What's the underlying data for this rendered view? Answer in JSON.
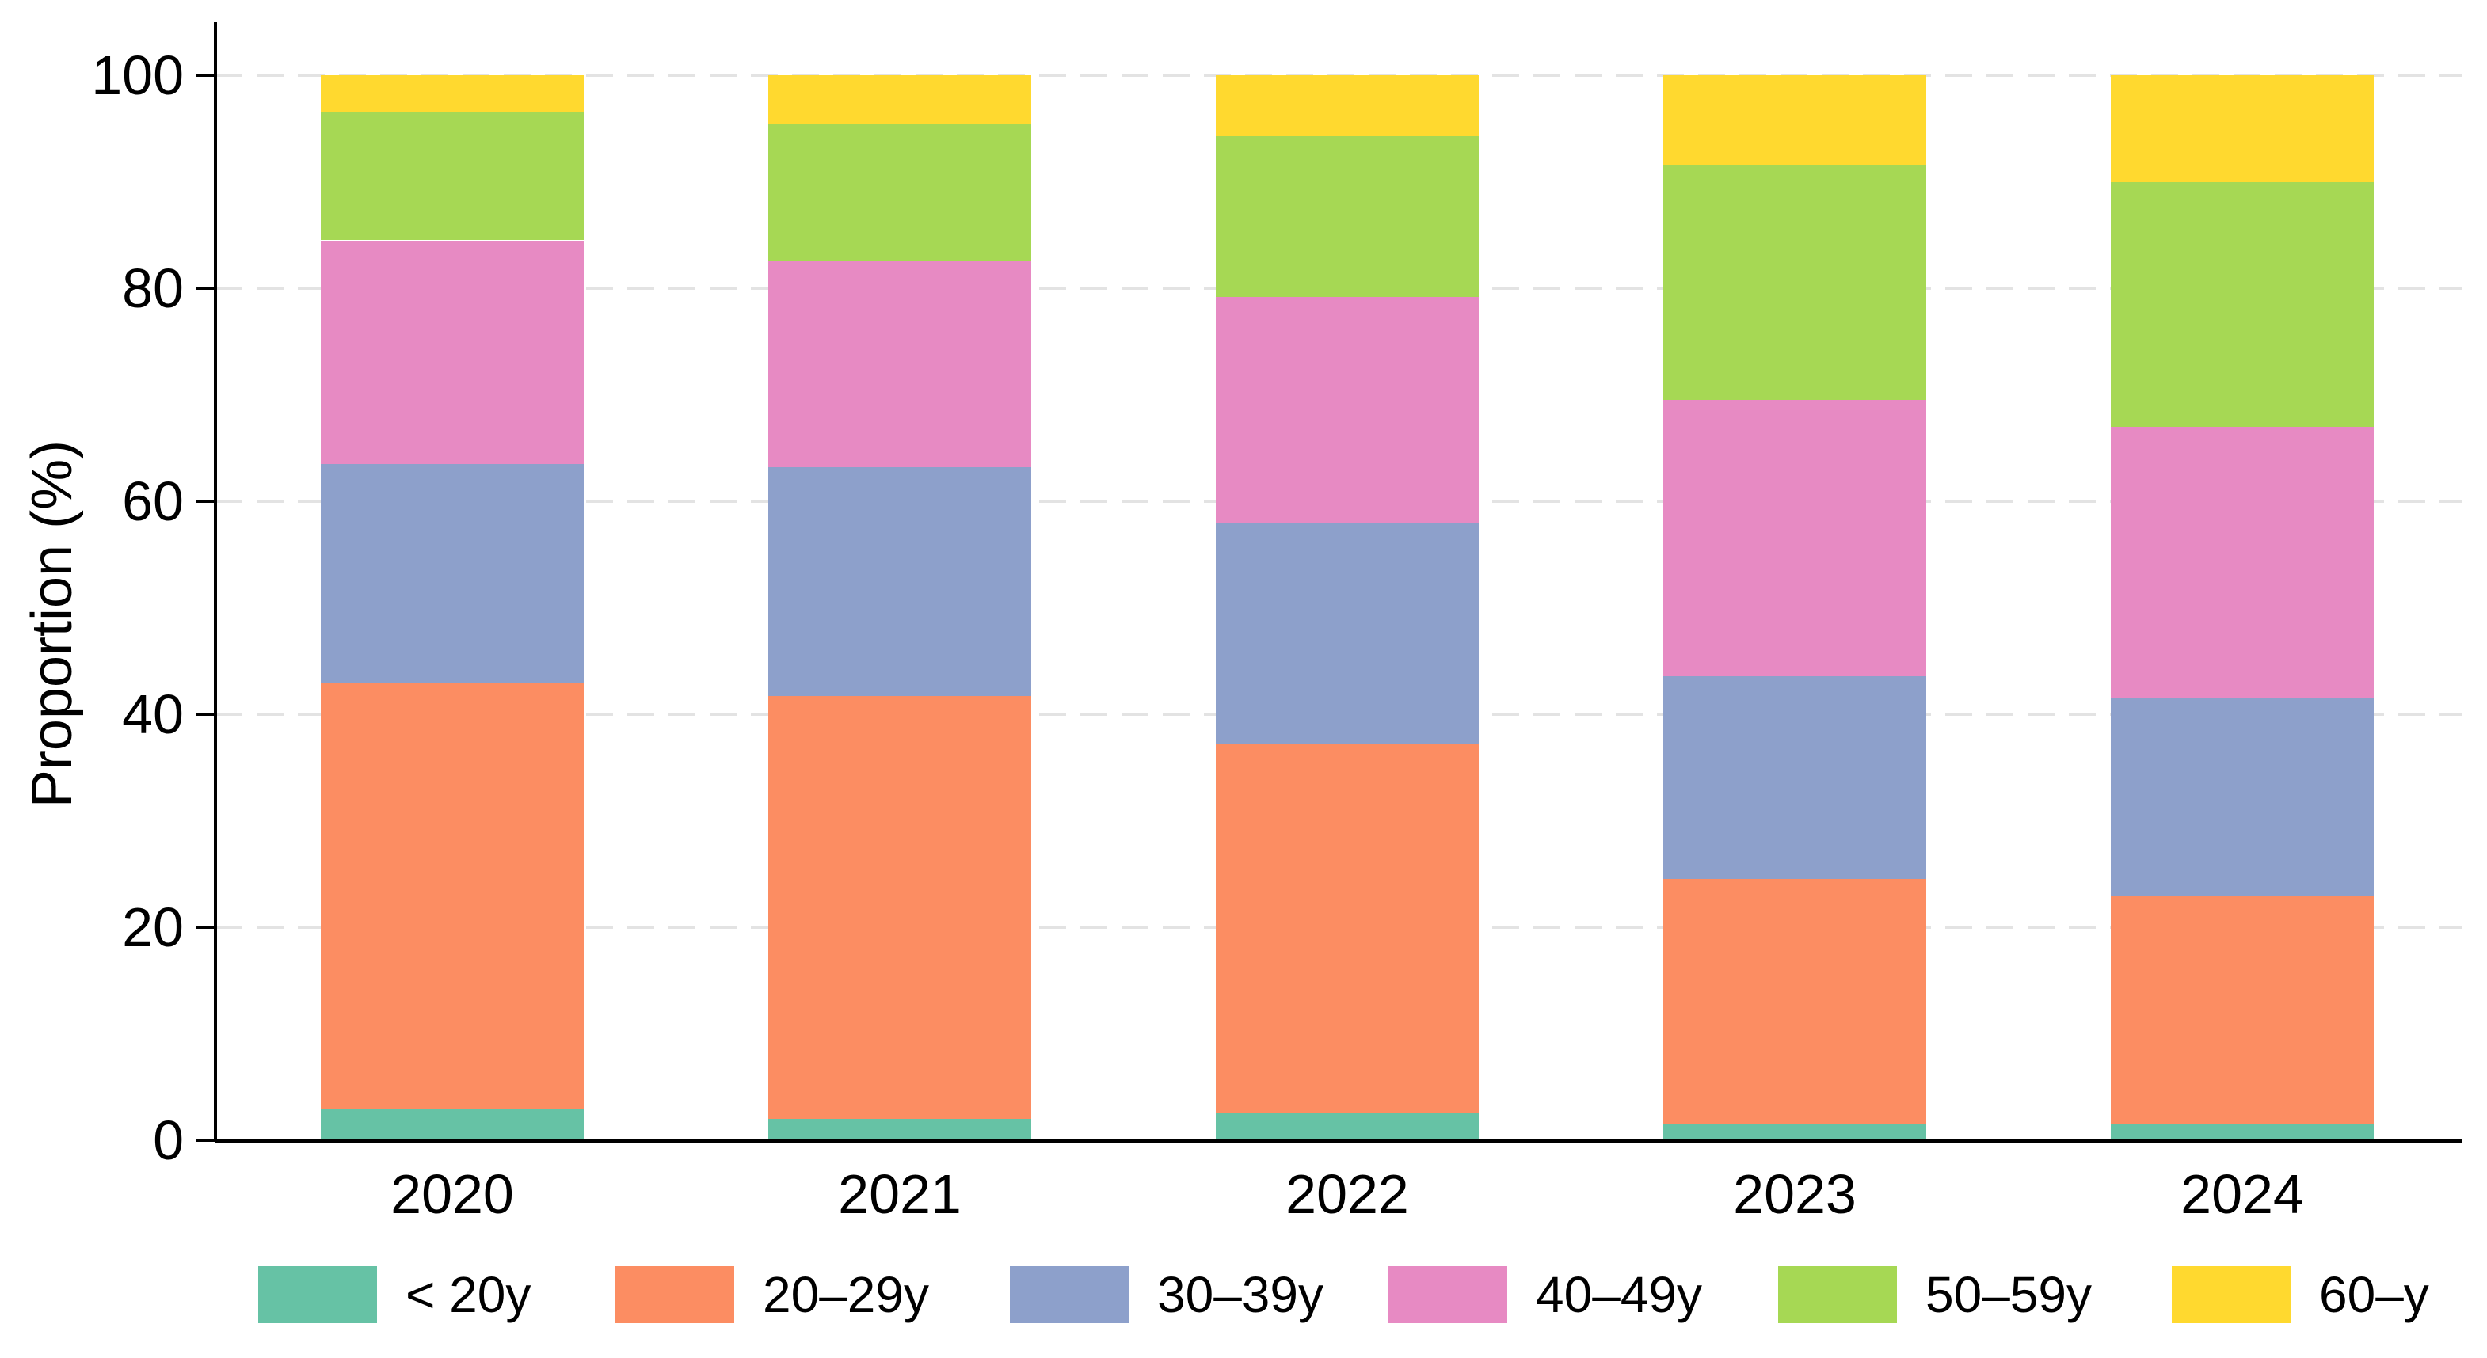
{
  "figure": {
    "background": "#ffffff",
    "text_color": "#000000",
    "axis_color": "#000000",
    "gridline_color": "#e3e3e3",
    "gridline_style": "dashed"
  },
  "chart_data": {
    "type": "bar",
    "stacked": true,
    "title": "",
    "xlabel": "",
    "ylabel": "Proportion (%)",
    "ylim": [
      0,
      100
    ],
    "yticks": [
      0,
      20,
      40,
      60,
      80,
      100
    ],
    "ytick_labels": [
      "0",
      "20",
      "40",
      "60",
      "80",
      "100"
    ],
    "grid": "horizontal dashed lines at 20/40/60/80/100",
    "legend_position": "bottom",
    "categories": [
      "2020",
      "2021",
      "2022",
      "2023",
      "2024"
    ],
    "series": [
      {
        "name": "< 20y",
        "color": "#66c2a5",
        "values": [
          3.0,
          2.0,
          2.5,
          1.5,
          1.5
        ]
      },
      {
        "name": "20–29y",
        "color": "#fc8d62",
        "values": [
          40.0,
          39.7,
          34.7,
          23.0,
          21.5
        ]
      },
      {
        "name": "30–39y",
        "color": "#8da0cb",
        "values": [
          20.5,
          21.5,
          20.8,
          19.1,
          18.5
        ]
      },
      {
        "name": "40–49y",
        "color": "#e78ac3",
        "values": [
          21.0,
          19.3,
          21.2,
          25.9,
          25.5
        ]
      },
      {
        "name": "50–59y",
        "color": "#a6d854",
        "values": [
          12.0,
          13.0,
          15.1,
          22.0,
          23.0
        ]
      },
      {
        "name": "60–y",
        "color": "#ffd92f",
        "values": [
          3.5,
          4.5,
          5.7,
          8.5,
          10.0
        ]
      }
    ]
  }
}
